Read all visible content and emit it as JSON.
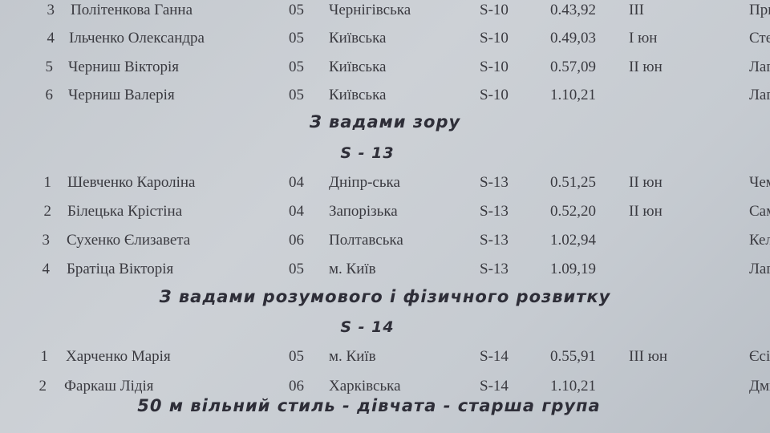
{
  "groups": [
    {
      "rows": [
        {
          "num": "3",
          "name": "Політенкова Ганна",
          "year": "05",
          "region": "Чернігівська",
          "class": "S-10",
          "time": "0.43,92",
          "rank": "III",
          "coach": "Прим"
        },
        {
          "num": "4",
          "name": "Ільченко Олександра",
          "year": "05",
          "region": "Київська",
          "class": "S-10",
          "time": "0.49,03",
          "rank": "I юн",
          "coach": "Стел"
        },
        {
          "num": "5",
          "name": "Черниш Вікторія",
          "year": "05",
          "region": "Київська",
          "class": "S-10",
          "time": "0.57,09",
          "rank": "II юн",
          "coach": "Лагу"
        },
        {
          "num": "6",
          "name": "Черниш Валерія",
          "year": "05",
          "region": "Київська",
          "class": "S-10",
          "time": "1.10,21",
          "rank": "",
          "coach": "Лагу"
        }
      ]
    },
    {
      "heading": "З вадами зору",
      "class_heading": "S - 13",
      "rows": [
        {
          "num": "1",
          "name": "Шевченко Кароліна",
          "year": "04",
          "region": "Дніпр-ська",
          "class": "S-13",
          "time": "0.51,25",
          "rank": "II юн",
          "coach": "Чеме"
        },
        {
          "num": "2",
          "name": "Білецька Крістіна",
          "year": "04",
          "region": "Запорізька",
          "class": "S-13",
          "time": "0.52,20",
          "rank": "II юн",
          "coach": "Само"
        },
        {
          "num": "3",
          "name": "Сухенко Єлизавета",
          "year": "06",
          "region": "Полтавська",
          "class": "S-13",
          "time": "1.02,94",
          "rank": "",
          "coach": "Келе"
        },
        {
          "num": "4",
          "name": "Братіца Вікторія",
          "year": "05",
          "region": "м. Київ",
          "class": "S-13",
          "time": "1.09,19",
          "rank": "",
          "coach": "Лагу"
        }
      ]
    },
    {
      "heading": "З вадами розумового і фізичного розвитку",
      "class_heading": "S - 14",
      "rows": [
        {
          "num": "1",
          "name": "Харченко Марія",
          "year": "05",
          "region": "м. Київ",
          "class": "S-14",
          "time": "0.55,91",
          "rank": "III юн",
          "coach": "Єсіпо"
        },
        {
          "num": "2",
          "name": "Фаркаш Лідія",
          "year": "06",
          "region": "Харківська",
          "class": "S-14",
          "time": "1.10,21",
          "rank": "",
          "coach": "Дмит"
        }
      ]
    }
  ],
  "next_heading": "50 м вільний стиль  -  дівчата  -  старша група"
}
